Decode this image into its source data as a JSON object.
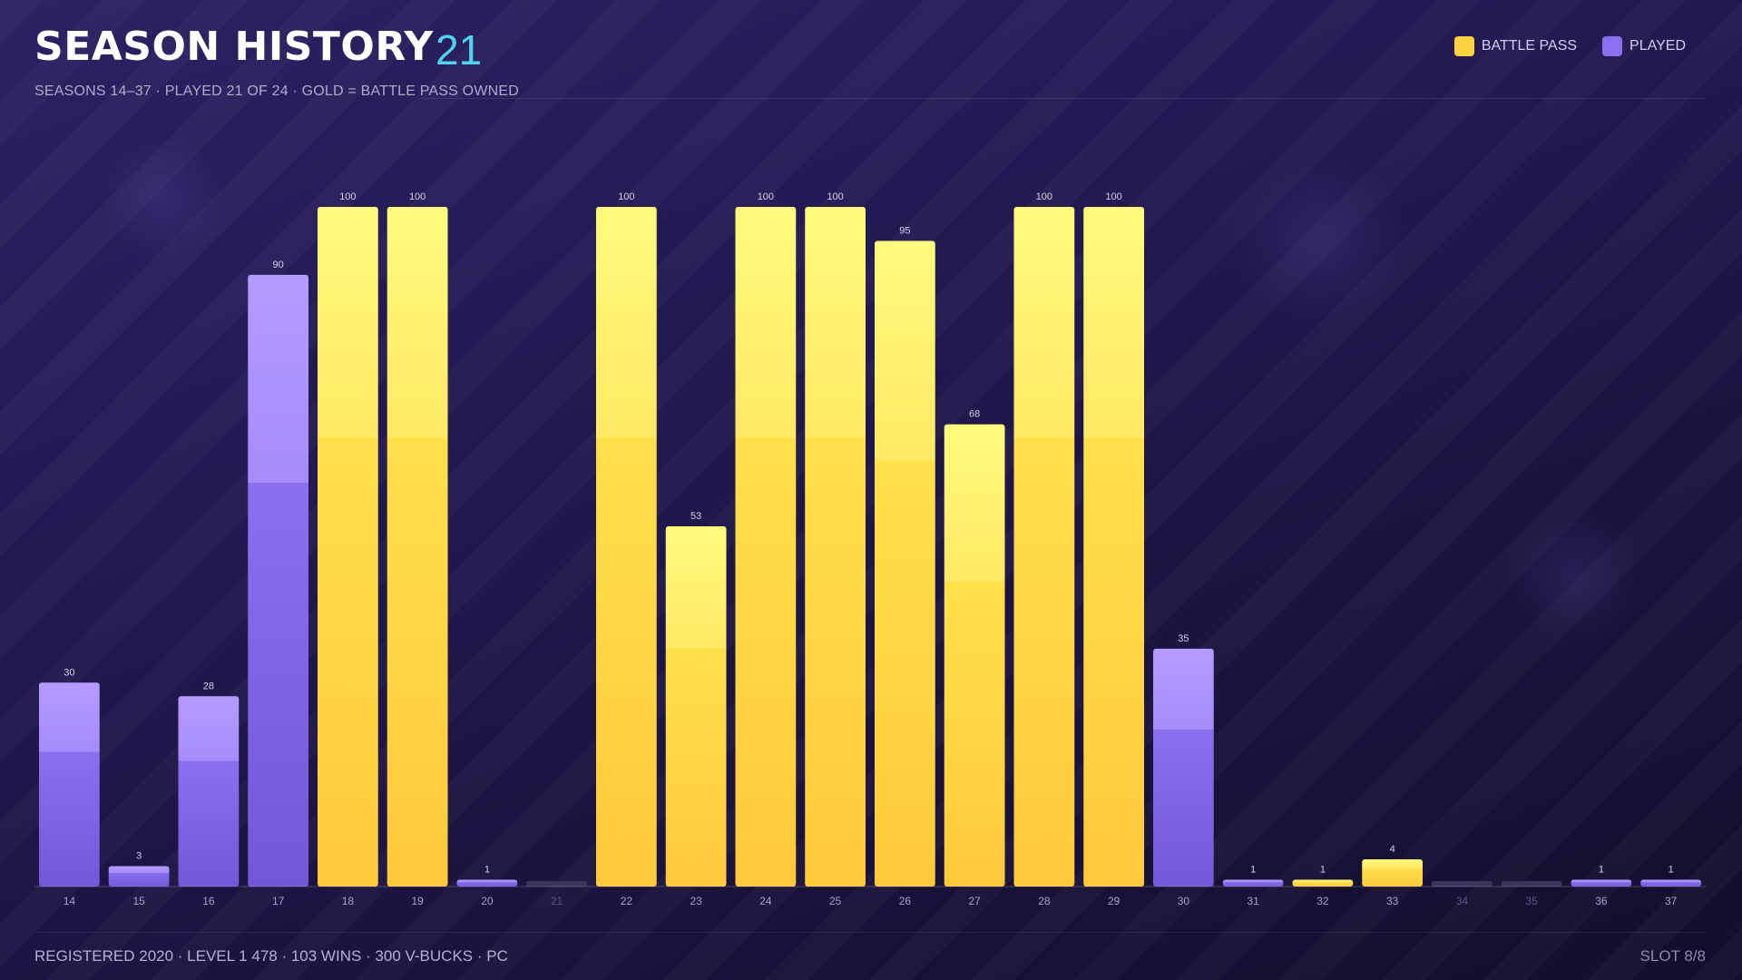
{
  "header": {
    "title": "SEASON HISTORY",
    "count": "21",
    "subtitle": "SEASONS 14–37 · PLAYED 21 OF 24 · GOLD = BATTLE PASS OWNED"
  },
  "legend": {
    "battle_pass_label": "BATTLE PASS",
    "played_label": "PLAYED"
  },
  "footer": {
    "left": "REGISTERED 2020 · LEVEL 1 478 · 103 WINS · 300 V-BUCKS · PC",
    "right": "SLOT 8/8"
  },
  "colors": {
    "gold": "#ffd23f",
    "purple": "#8a6ff0",
    "accent": "#4fd3ee",
    "unplayed": "#3a3458"
  },
  "chart_data": {
    "type": "bar",
    "categories": [
      "14",
      "15",
      "16",
      "17",
      "18",
      "19",
      "20",
      "21",
      "22",
      "23",
      "24",
      "25",
      "26",
      "27",
      "28",
      "29",
      "30",
      "31",
      "32",
      "33",
      "34",
      "35",
      "36",
      "37"
    ],
    "values": [
      30,
      3,
      28,
      90,
      100,
      100,
      1,
      0,
      100,
      53,
      100,
      100,
      95,
      68,
      100,
      100,
      35,
      1,
      1,
      4,
      0,
      0,
      1,
      1
    ],
    "battle_pass": [
      false,
      false,
      false,
      false,
      true,
      true,
      false,
      false,
      true,
      true,
      true,
      true,
      true,
      true,
      true,
      true,
      false,
      false,
      true,
      true,
      false,
      false,
      false,
      false
    ],
    "played": [
      true,
      true,
      true,
      true,
      true,
      true,
      true,
      false,
      true,
      true,
      true,
      true,
      true,
      true,
      true,
      true,
      true,
      true,
      true,
      true,
      false,
      false,
      true,
      true
    ],
    "ylim": [
      0,
      100
    ],
    "grid": false,
    "legend_position": "top-right"
  }
}
